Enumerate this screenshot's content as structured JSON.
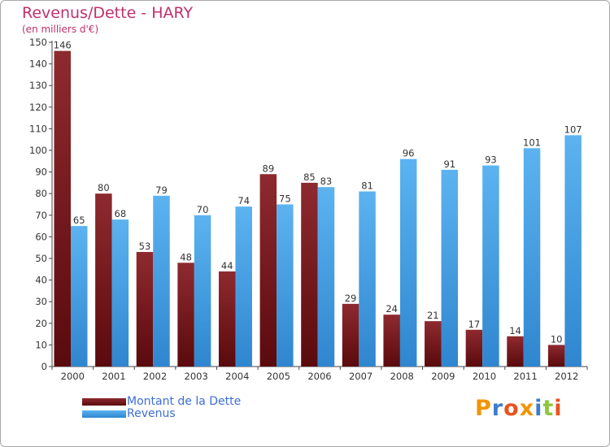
{
  "chart_data": {
    "type": "bar",
    "title": "Revenus/Dette - HARY",
    "subtitle": "(en milliers d'€)",
    "categories": [
      "2000",
      "2001",
      "2002",
      "2003",
      "2004",
      "2005",
      "2006",
      "2007",
      "2008",
      "2009",
      "2010",
      "2011",
      "2012"
    ],
    "series": [
      {
        "name": "Montant de la Dette",
        "color": "#7b1a1e",
        "values": [
          146,
          80,
          53,
          48,
          44,
          89,
          85,
          29,
          24,
          21,
          17,
          14,
          10
        ]
      },
      {
        "name": "Revenus",
        "color": "#3d9be3",
        "values": [
          65,
          68,
          79,
          70,
          74,
          75,
          83,
          81,
          96,
          91,
          93,
          101,
          107
        ]
      }
    ],
    "ylim": [
      0,
      150
    ],
    "yticks": [
      0,
      10,
      20,
      30,
      40,
      50,
      60,
      70,
      80,
      90,
      100,
      110,
      120,
      130,
      140,
      150
    ],
    "grid": false,
    "legend_position": "bottom-left"
  },
  "brand": {
    "text": "Proxiti",
    "colors": [
      "#f29400",
      "#3d7ec9",
      "#e8531e",
      "#f29400",
      "#3d7ec9",
      "#8dc63f",
      "#e8531e"
    ]
  }
}
